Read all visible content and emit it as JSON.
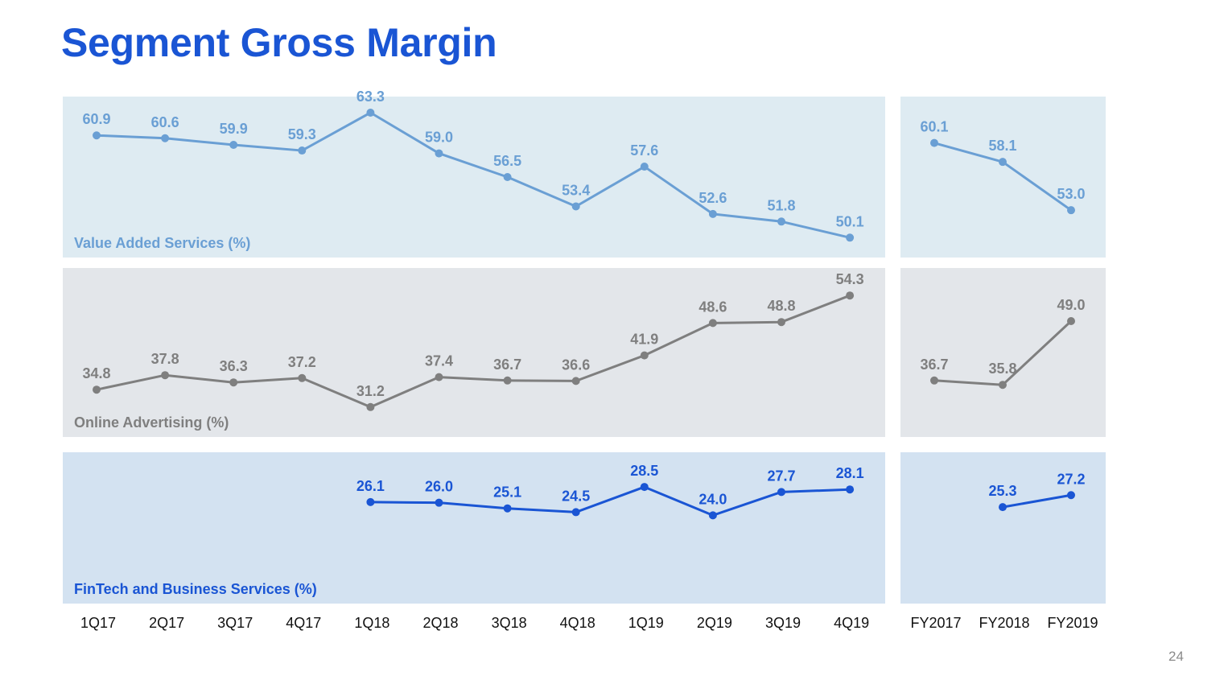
{
  "title": "Segment Gross Margin",
  "page_number": "24",
  "chart_data": [
    {
      "type": "line",
      "title": "Value Added Services (%)",
      "categories": [
        "1Q17",
        "2Q17",
        "3Q17",
        "4Q17",
        "1Q18",
        "2Q18",
        "3Q18",
        "4Q18",
        "1Q19",
        "2Q19",
        "3Q19",
        "4Q19"
      ],
      "values": [
        60.9,
        60.6,
        59.9,
        59.3,
        63.3,
        59.0,
        56.5,
        53.4,
        57.6,
        52.6,
        51.8,
        50.1
      ],
      "annual_categories": [
        "FY2017",
        "FY2018",
        "FY2019"
      ],
      "annual_values": [
        60.1,
        58.1,
        53.0
      ],
      "color": "#6a9fd4",
      "background": "#deebf2"
    },
    {
      "type": "line",
      "title": "Online Advertising (%)",
      "categories": [
        "1Q17",
        "2Q17",
        "3Q17",
        "4Q17",
        "1Q18",
        "2Q18",
        "3Q18",
        "4Q18",
        "1Q19",
        "2Q19",
        "3Q19",
        "4Q19"
      ],
      "values": [
        34.8,
        37.8,
        36.3,
        37.2,
        31.2,
        37.4,
        36.7,
        36.6,
        41.9,
        48.6,
        48.8,
        54.3
      ],
      "annual_categories": [
        "FY2017",
        "FY2018",
        "FY2019"
      ],
      "annual_values": [
        36.7,
        35.8,
        49.0
      ],
      "color": "#7f7f7f",
      "background": "#e3e6ea"
    },
    {
      "type": "line",
      "title": "FinTech and Business Services (%)",
      "categories": [
        "1Q17",
        "2Q17",
        "3Q17",
        "4Q17",
        "1Q18",
        "2Q18",
        "3Q18",
        "4Q18",
        "1Q19",
        "2Q19",
        "3Q19",
        "4Q19"
      ],
      "values": [
        null,
        null,
        null,
        null,
        26.1,
        26.0,
        25.1,
        24.5,
        28.5,
        24.0,
        27.7,
        28.1
      ],
      "annual_categories": [
        "FY2017",
        "FY2018",
        "FY2019"
      ],
      "annual_values": [
        null,
        25.3,
        27.2
      ],
      "color": "#1a55d4",
      "background": "#d3e2f1"
    }
  ]
}
